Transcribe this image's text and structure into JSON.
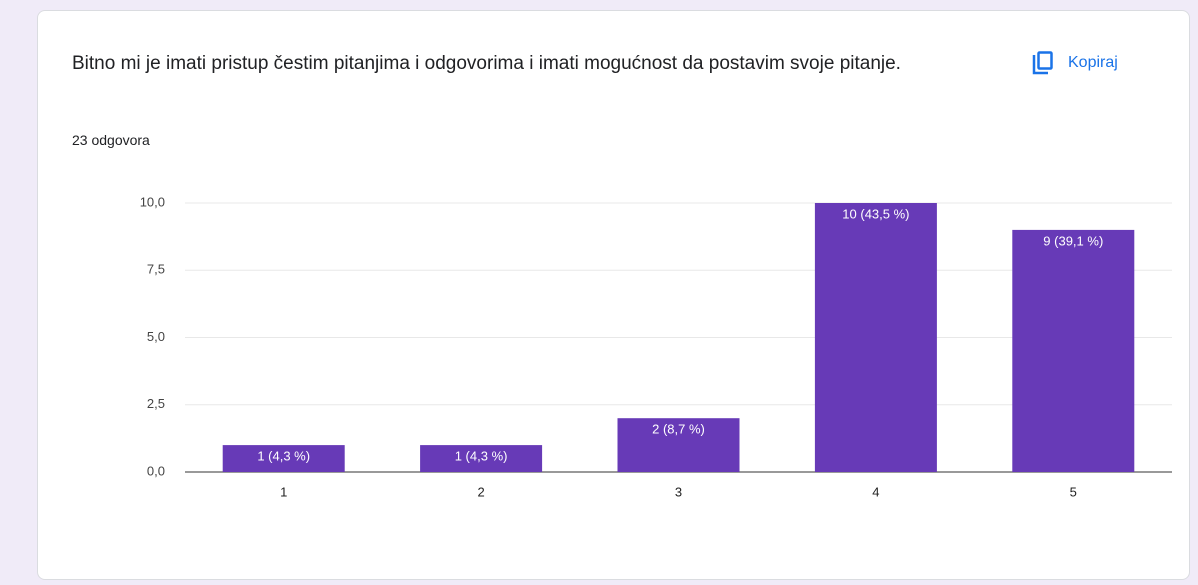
{
  "header": {
    "title": "Bitno mi je imati pristup čestim pitanjima i odgovorima i imati mogućnost da postavim svoje pitanje.",
    "copy_button": "Kopiraj",
    "responses": "23 odgovora"
  },
  "chart_data": {
    "type": "bar",
    "categories": [
      "1",
      "2",
      "3",
      "4",
      "5"
    ],
    "values": [
      1,
      1,
      2,
      10,
      9
    ],
    "value_labels": [
      "1 (4,3 %)",
      "1 (4,3 %)",
      "2 (8,7 %)",
      "10 (43,5 %)",
      "9 (39,1 %)"
    ],
    "color": "#673ab7",
    "ylim": [
      0,
      10
    ],
    "yticks": [
      {
        "value": 0,
        "label": "0,0"
      },
      {
        "value": 2.5,
        "label": "2,5"
      },
      {
        "value": 5,
        "label": "5,0"
      },
      {
        "value": 7.5,
        "label": "7,5"
      },
      {
        "value": 10,
        "label": "10,0"
      }
    ],
    "grid": true
  }
}
